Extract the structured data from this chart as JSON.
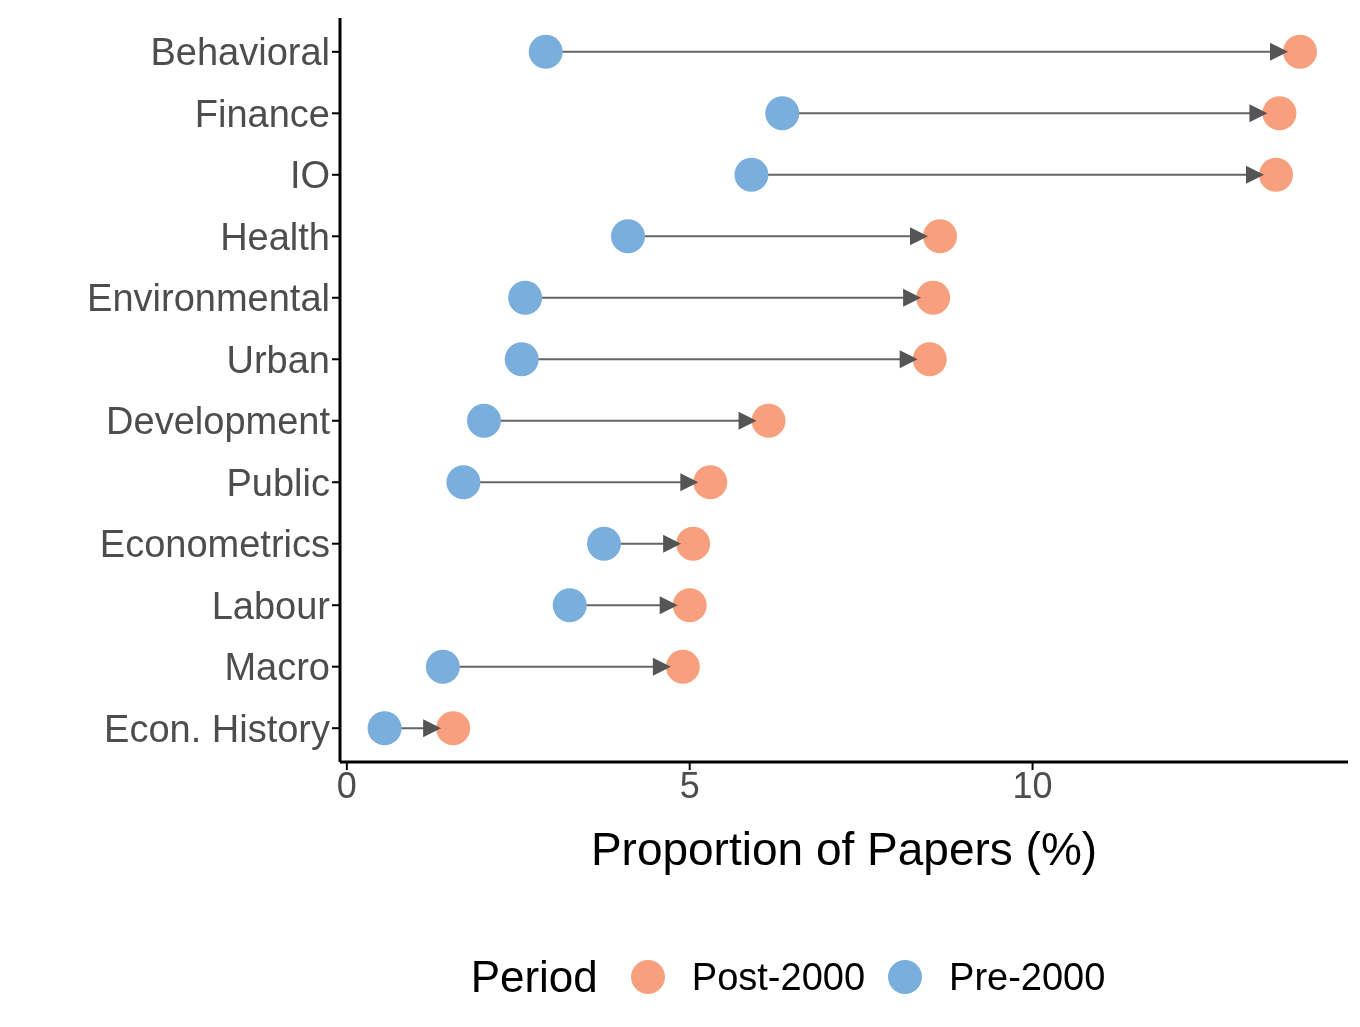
{
  "chart_data": {
    "type": "scatter",
    "xlabel": "Proportion of Papers (%)",
    "legend_title": "Period",
    "legend": "bottom",
    "grid": false,
    "marker": "circle",
    "categories": [
      "Behavioral",
      "Finance",
      "IO",
      "Health",
      "Environmental",
      "Urban",
      "Development",
      "Public",
      "Econometrics",
      "Labour",
      "Macro",
      "Econ. History"
    ],
    "orientation": "horizontal",
    "xlim": [
      -0.1,
      14.6
    ],
    "xticks": [
      0,
      5,
      10
    ],
    "series": [
      {
        "name": "Post-2000",
        "color": "#f8a07e",
        "values": [
          13.9,
          13.6,
          13.55,
          8.65,
          8.55,
          8.5,
          6.15,
          5.3,
          5.05,
          5.0,
          4.9,
          1.55
        ]
      },
      {
        "name": "Pre-2000",
        "color": "#7aaedc",
        "values": [
          2.9,
          6.35,
          5.9,
          4.1,
          2.6,
          2.55,
          2.0,
          1.7,
          3.75,
          3.25,
          1.4,
          0.55
        ]
      }
    ]
  }
}
